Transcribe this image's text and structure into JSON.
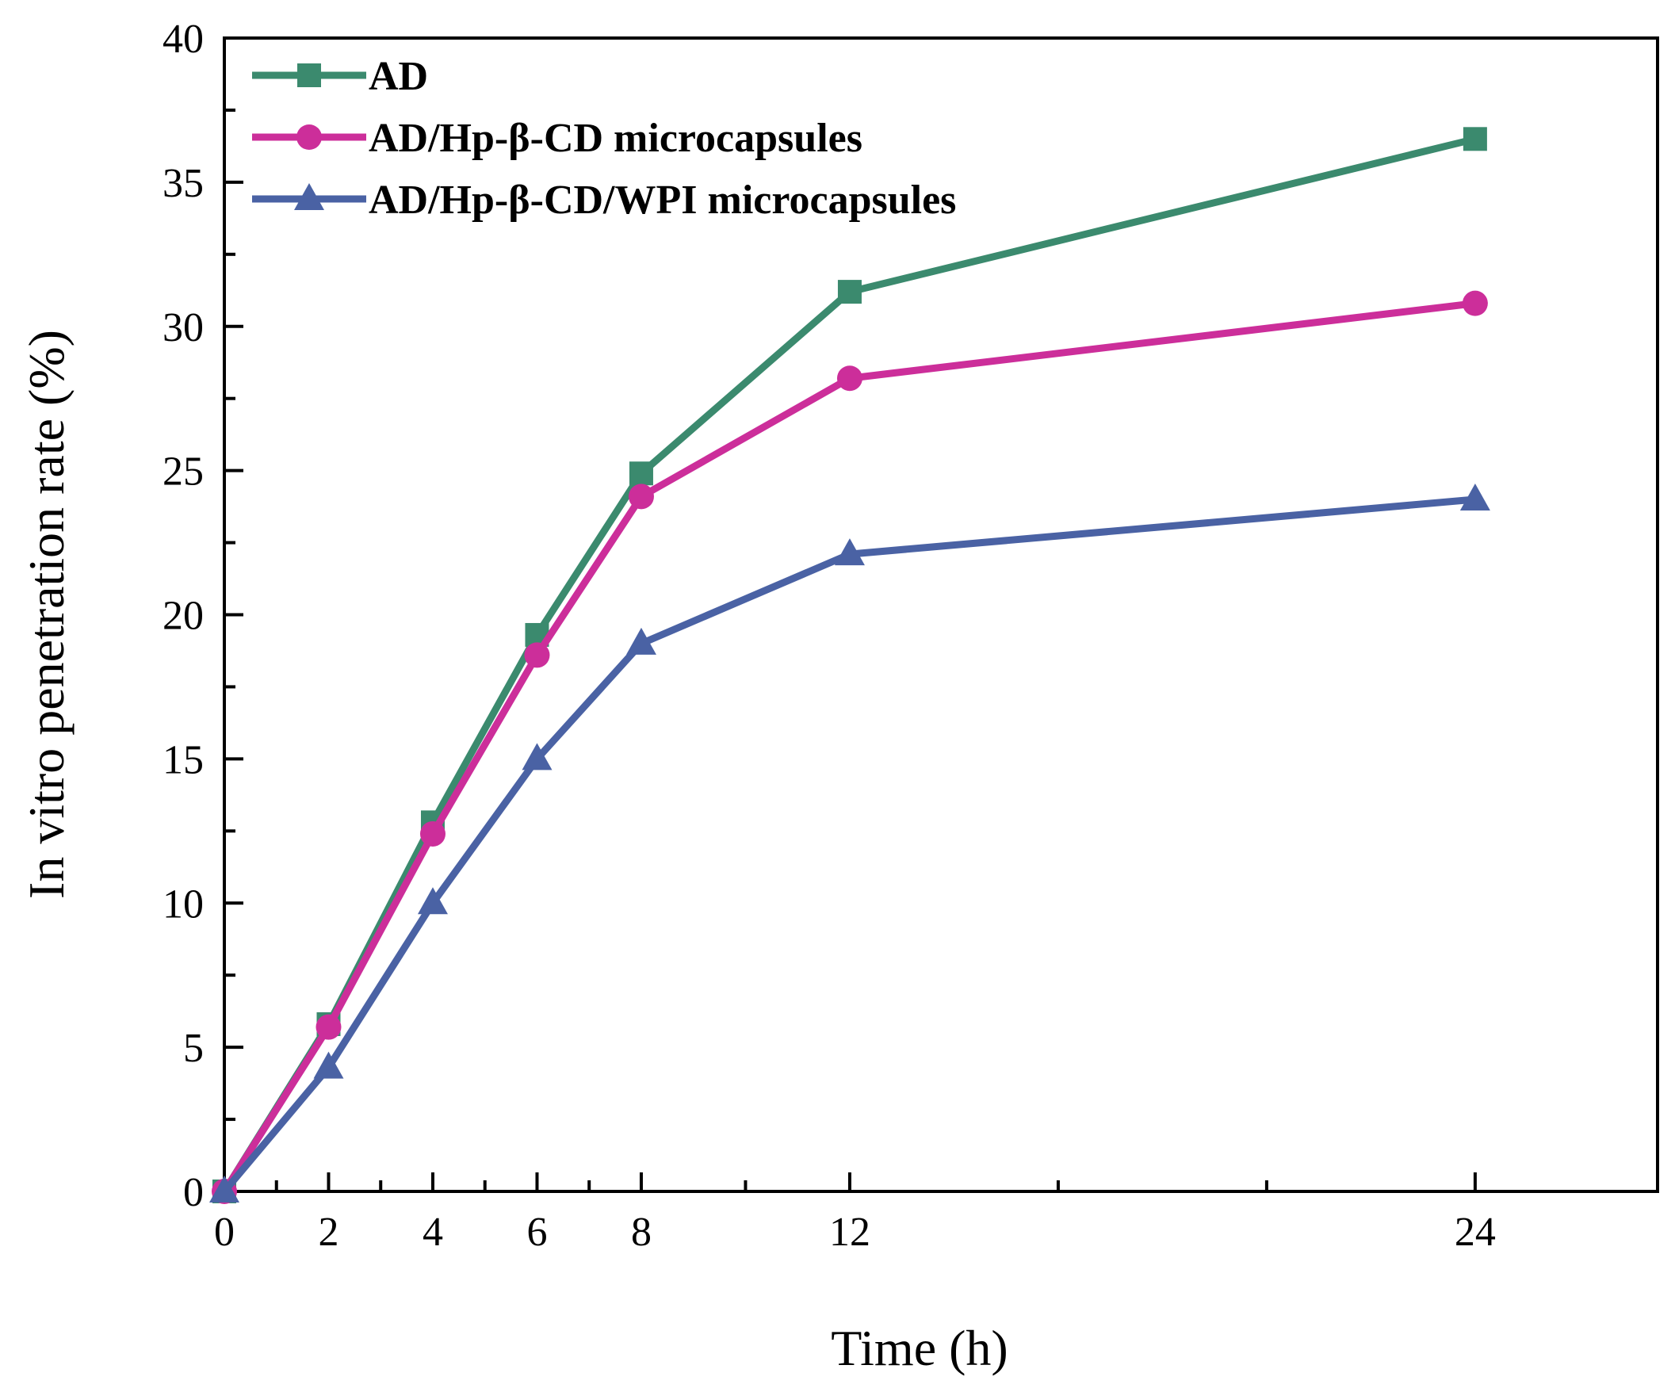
{
  "chart_data": {
    "type": "line",
    "title": "",
    "xlabel": "Time (h)",
    "ylabel": "In vitro penetration rate (%)",
    "xlim": [
      0,
      27.5
    ],
    "ylim": [
      0,
      40
    ],
    "xticks": [
      0,
      2,
      4,
      6,
      8,
      12,
      24
    ],
    "yticks": [
      0,
      5,
      10,
      15,
      20,
      25,
      30,
      35,
      40
    ],
    "grid": false,
    "legend_position": "top-left",
    "x": [
      0,
      2,
      4,
      6,
      8,
      12,
      24
    ],
    "series": [
      {
        "name": "AD",
        "color": "#3b8a6e",
        "marker": "square",
        "values": [
          0,
          5.8,
          12.8,
          19.3,
          24.9,
          31.2,
          36.5
        ]
      },
      {
        "name": "AD/Hp-β-CD microcapsules",
        "color": "#cc2e9a",
        "marker": "circle",
        "values": [
          0,
          5.7,
          12.4,
          18.6,
          24.1,
          28.2,
          30.8
        ]
      },
      {
        "name": "AD/Hp-β-CD/WPI microcapsules",
        "color": "#4a62a4",
        "marker": "triangle",
        "values": [
          0,
          4.3,
          10.0,
          15.0,
          19.0,
          22.1,
          24.0
        ]
      }
    ]
  }
}
